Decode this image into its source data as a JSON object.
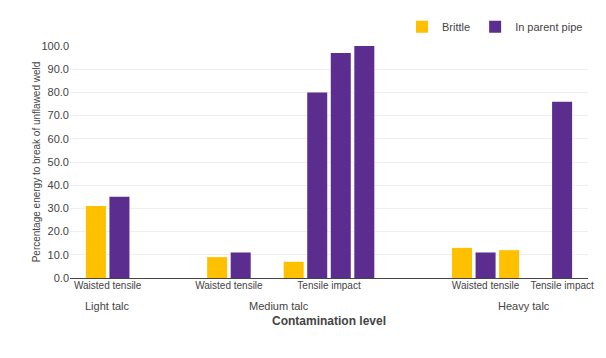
{
  "chart_data": {
    "type": "bar",
    "xlabel": "Contamination level",
    "ylabel": "Percentage energy to break of unflawed weld",
    "categories": [
      [
        "Light talc",
        "Waisted tensile"
      ],
      [
        "Light talc",
        "Waisted tensile"
      ],
      [
        "Medium talc",
        "Waisted tensile"
      ],
      [
        "Medium talc",
        "Waisted tensile"
      ],
      [
        "Medium talc",
        "Tensile impact"
      ],
      [
        "Medium talc",
        "Tensile impact"
      ],
      [
        "Medium talc",
        "Tensile impact"
      ],
      [
        "Medium talc",
        "Tensile impact"
      ],
      [
        "Heavy talc",
        "Waisted tensile"
      ],
      [
        "Heavy talc",
        "Waisted tensile"
      ],
      [
        "Heavy talc",
        "Waisted tensile"
      ],
      [
        "Heavy talc",
        "Tensile impact"
      ]
    ],
    "series": [
      {
        "name": "Brittle",
        "color": "#FFC000",
        "values": [
          31,
          null,
          9,
          null,
          7,
          null,
          null,
          null,
          13,
          null,
          12,
          null
        ]
      },
      {
        "name": "In parent pipe",
        "color": "#5B2D8E",
        "values": [
          null,
          35,
          null,
          11,
          null,
          80,
          97,
          100,
          null,
          11,
          null,
          76
        ]
      }
    ],
    "ylim": [
      0,
      100
    ],
    "yticks": [
      {
        "value": 0,
        "label": "0.0"
      },
      {
        "value": 10,
        "label": "10.0"
      },
      {
        "value": 20,
        "label": "20.0"
      },
      {
        "value": 30,
        "label": "30.0"
      },
      {
        "value": 40,
        "label": "40.0"
      },
      {
        "value": 50,
        "label": "50.0"
      },
      {
        "value": 60,
        "label": "60.0"
      },
      {
        "value": 70,
        "label": "70.0"
      },
      {
        "value": 80,
        "label": "80.0"
      },
      {
        "value": 90,
        "label": "90.0"
      },
      {
        "value": 100,
        "label": "100.0"
      }
    ],
    "grid": true,
    "legend": "upper right"
  }
}
